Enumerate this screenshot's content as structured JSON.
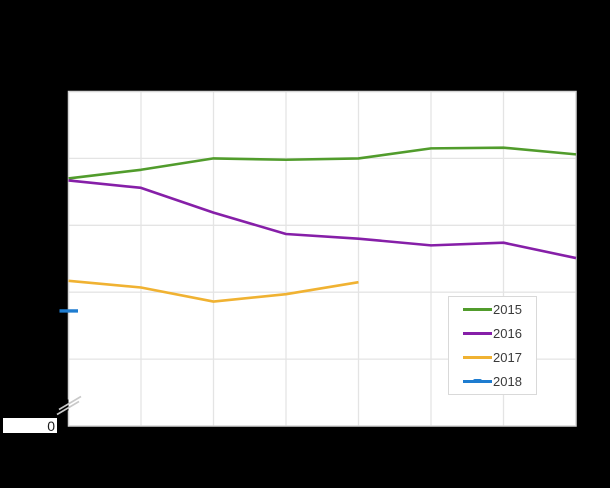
{
  "page": {
    "background": "#000000",
    "plot_background": "#ffffff"
  },
  "chart_data": {
    "type": "line",
    "x_count": 8,
    "x_tick_labels_visible": false,
    "y_tick_labels_visible": false,
    "y_zero_label": "0",
    "y_axis_break": true,
    "ylim_units": [
      0,
      5
    ],
    "grid": true,
    "legend_position": "inside-right-bottom",
    "series": [
      {
        "name": "2015",
        "color": "#519c2c",
        "values": [
          3.7,
          3.83,
          4.0,
          3.98,
          4.0,
          4.15,
          4.16,
          4.06
        ]
      },
      {
        "name": "2016",
        "color": "#861fa8",
        "values": [
          3.67,
          3.56,
          3.19,
          2.87,
          2.8,
          2.7,
          2.74,
          2.51
        ]
      },
      {
        "name": "2017",
        "color": "#f0b232",
        "values": [
          2.17,
          2.07,
          1.86,
          1.97,
          2.15
        ]
      },
      {
        "name": "2018",
        "color": "#1e7cd0",
        "values": [
          1.72
        ]
      }
    ]
  }
}
